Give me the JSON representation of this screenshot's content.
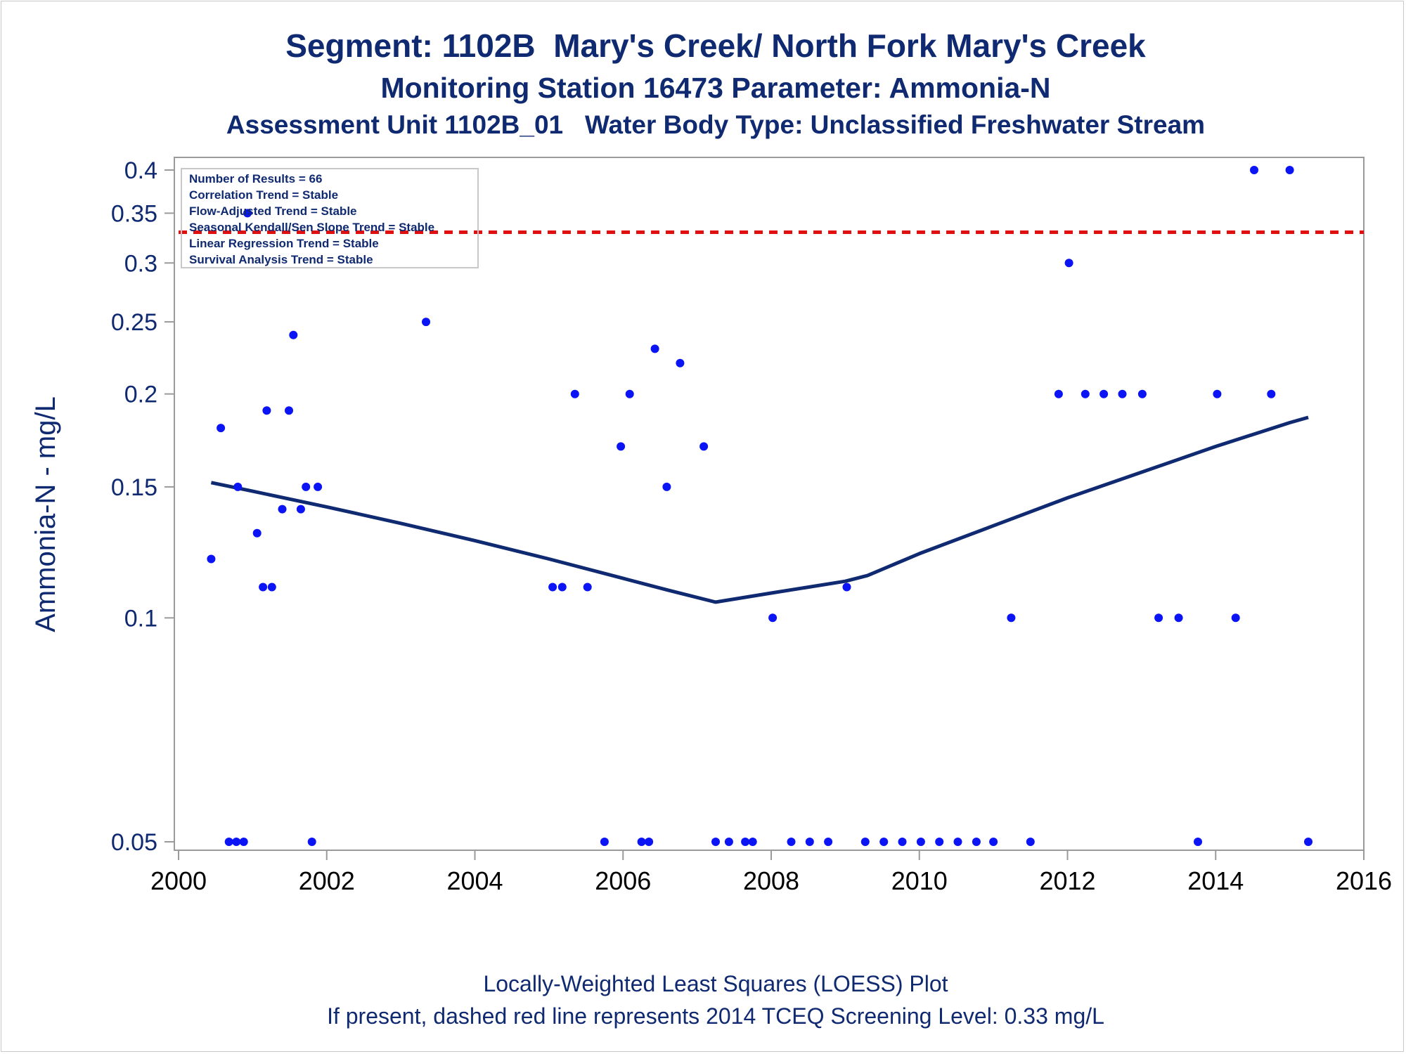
{
  "chart_data": {
    "type": "scatter",
    "title": "Segment: 1102B  Mary's Creek/ North Fork Mary's Creek",
    "subtitle1": "Monitoring Station 16473 Parameter: Ammonia-N",
    "subtitle2": "Assessment Unit 1102B_01   Water Body Type: Unclassified Freshwater Stream",
    "xlabel": "",
    "ylabel": "Ammonia-N - mg/L",
    "x_scale": "linear",
    "y_scale": "log",
    "xlim": [
      2000,
      2016
    ],
    "ylim": [
      0.05,
      0.4
    ],
    "x_ticks": [
      "2000",
      "2002",
      "2004",
      "2006",
      "2008",
      "2010",
      "2012",
      "2014",
      "2016"
    ],
    "y_ticks": [
      "0.05",
      "0.1",
      "0.15",
      "0.2",
      "0.25",
      "0.3",
      "0.35",
      "0.4"
    ],
    "grid": false,
    "stats_box": {
      "placement": "top-left",
      "lines": [
        "Number of Results = 66",
        "Correlation Trend = Stable",
        "Flow-Adjusted Trend = Stable",
        "Seasonal Kendall/Sen Slope Trend = Stable",
        "Linear Regression Trend = Stable",
        "Survival Analysis Trend = Stable"
      ]
    },
    "screening_level": {
      "value": 0.33,
      "color": "#e01010",
      "style": "dashed"
    },
    "series": [
      {
        "type": "scatter",
        "color": "#0a14f5",
        "points": [
          [
            2000.44,
            0.12
          ],
          [
            2000.57,
            0.18
          ],
          [
            2000.68,
            0.05
          ],
          [
            2000.78,
            0.05
          ],
          [
            2000.8,
            0.15
          ],
          [
            2000.88,
            0.05
          ],
          [
            2000.93,
            0.35
          ],
          [
            2001.06,
            0.13
          ],
          [
            2001.14,
            0.11
          ],
          [
            2001.19,
            0.19
          ],
          [
            2001.26,
            0.11
          ],
          [
            2001.4,
            0.14
          ],
          [
            2001.49,
            0.19
          ],
          [
            2001.55,
            0.24
          ],
          [
            2001.65,
            0.14
          ],
          [
            2001.72,
            0.15
          ],
          [
            2001.8,
            0.05
          ],
          [
            2001.88,
            0.15
          ],
          [
            2003.34,
            0.25
          ],
          [
            2005.05,
            0.11
          ],
          [
            2005.18,
            0.11
          ],
          [
            2005.35,
            0.2
          ],
          [
            2005.52,
            0.11
          ],
          [
            2005.75,
            0.05
          ],
          [
            2005.97,
            0.17
          ],
          [
            2006.09,
            0.2
          ],
          [
            2006.25,
            0.05
          ],
          [
            2006.35,
            0.05
          ],
          [
            2006.43,
            0.23
          ],
          [
            2006.59,
            0.15
          ],
          [
            2006.77,
            0.22
          ],
          [
            2007.09,
            0.17
          ],
          [
            2007.25,
            0.05
          ],
          [
            2007.43,
            0.05
          ],
          [
            2007.65,
            0.05
          ],
          [
            2007.75,
            0.05
          ],
          [
            2008.02,
            0.1
          ],
          [
            2008.27,
            0.05
          ],
          [
            2008.52,
            0.05
          ],
          [
            2008.77,
            0.05
          ],
          [
            2009.02,
            0.11
          ],
          [
            2009.27,
            0.05
          ],
          [
            2009.52,
            0.05
          ],
          [
            2009.77,
            0.05
          ],
          [
            2010.02,
            0.05
          ],
          [
            2010.27,
            0.05
          ],
          [
            2010.52,
            0.05
          ],
          [
            2010.77,
            0.05
          ],
          [
            2011.0,
            0.05
          ],
          [
            2011.24,
            0.1
          ],
          [
            2011.5,
            0.05
          ],
          [
            2011.88,
            0.2
          ],
          [
            2012.02,
            0.3
          ],
          [
            2012.24,
            0.2
          ],
          [
            2012.49,
            0.2
          ],
          [
            2012.74,
            0.2
          ],
          [
            2013.01,
            0.2
          ],
          [
            2013.23,
            0.1
          ],
          [
            2013.5,
            0.1
          ],
          [
            2013.76,
            0.05
          ],
          [
            2014.02,
            0.2
          ],
          [
            2014.27,
            0.1
          ],
          [
            2014.52,
            0.4
          ],
          [
            2014.75,
            0.2
          ],
          [
            2015.0,
            0.4
          ],
          [
            2015.25,
            0.05
          ]
        ]
      },
      {
        "type": "line",
        "color": "#102a71",
        "points": [
          [
            2000.44,
            0.152
          ],
          [
            2001.0,
            0.148
          ],
          [
            2002.0,
            0.141
          ],
          [
            2003.0,
            0.134
          ],
          [
            2004.0,
            0.127
          ],
          [
            2005.0,
            0.12
          ],
          [
            2006.0,
            0.113
          ],
          [
            2006.6,
            0.109
          ],
          [
            2007.25,
            0.105
          ],
          [
            2008.0,
            0.108
          ],
          [
            2009.0,
            0.112
          ],
          [
            2009.3,
            0.114
          ],
          [
            2010.0,
            0.122
          ],
          [
            2011.0,
            0.133
          ],
          [
            2012.0,
            0.145
          ],
          [
            2013.0,
            0.157
          ],
          [
            2014.0,
            0.17
          ],
          [
            2015.0,
            0.183
          ],
          [
            2015.25,
            0.186
          ]
        ]
      }
    ]
  },
  "footnote1": "Locally-Weighted Least Squares (LOESS) Plot",
  "footnote2": "If present, dashed red line represents 2014 TCEQ Screening Level: 0.33 mg/L"
}
